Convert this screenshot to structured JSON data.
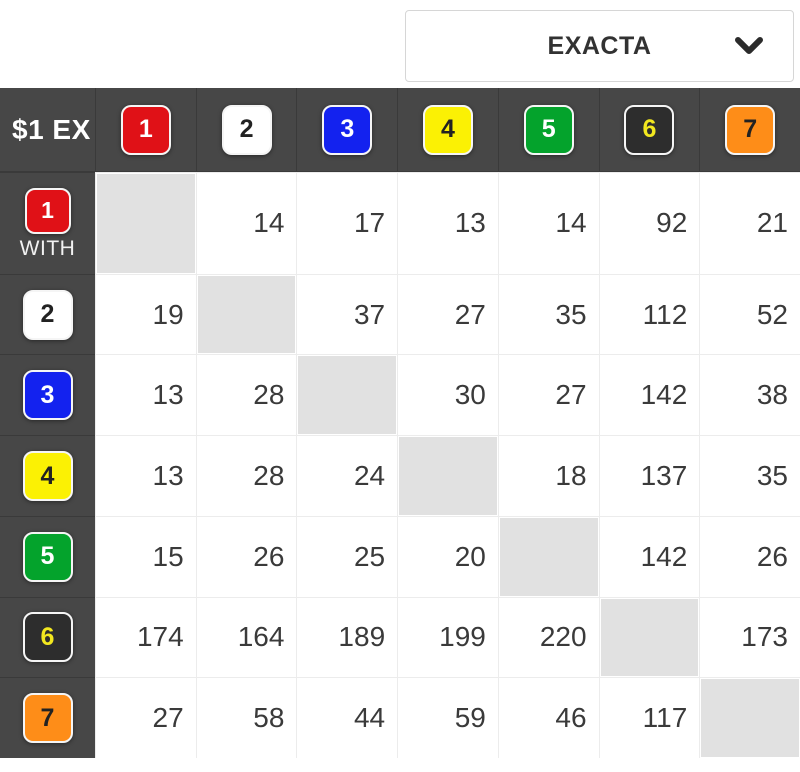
{
  "dropdown": {
    "label": "EXACTA"
  },
  "table": {
    "corner_label": "$1 EX",
    "with_label": "WITH",
    "runners": [
      {
        "number": "1",
        "bg": "#e01117",
        "fg": "#ffffff"
      },
      {
        "number": "2",
        "bg": "#ffffff",
        "fg": "#222222"
      },
      {
        "number": "3",
        "bg": "#1322ef",
        "fg": "#ffffff"
      },
      {
        "number": "4",
        "bg": "#fbf104",
        "fg": "#222222"
      },
      {
        "number": "5",
        "bg": "#04a32c",
        "fg": "#ffffff"
      },
      {
        "number": "6",
        "bg": "#2d2d2d",
        "fg": "#f2e71f"
      },
      {
        "number": "7",
        "bg": "#fe8d18",
        "fg": "#222222"
      }
    ],
    "matrix": [
      [
        null,
        14,
        17,
        13,
        14,
        92,
        21
      ],
      [
        19,
        null,
        37,
        27,
        35,
        112,
        52
      ],
      [
        13,
        28,
        null,
        30,
        27,
        142,
        38
      ],
      [
        13,
        28,
        24,
        null,
        18,
        137,
        35
      ],
      [
        15,
        26,
        25,
        20,
        null,
        142,
        26
      ],
      [
        174,
        164,
        189,
        199,
        220,
        null,
        173
      ],
      [
        27,
        58,
        44,
        59,
        46,
        117,
        null
      ]
    ]
  },
  "colors": {
    "header_bg": "#474747",
    "header_divider": "#3a3a3a",
    "diagonal_fill": "#e1e1e1",
    "grid_line": "#ececec",
    "value_text": "#3a3a3a",
    "chevron": "#2b2b2b"
  }
}
